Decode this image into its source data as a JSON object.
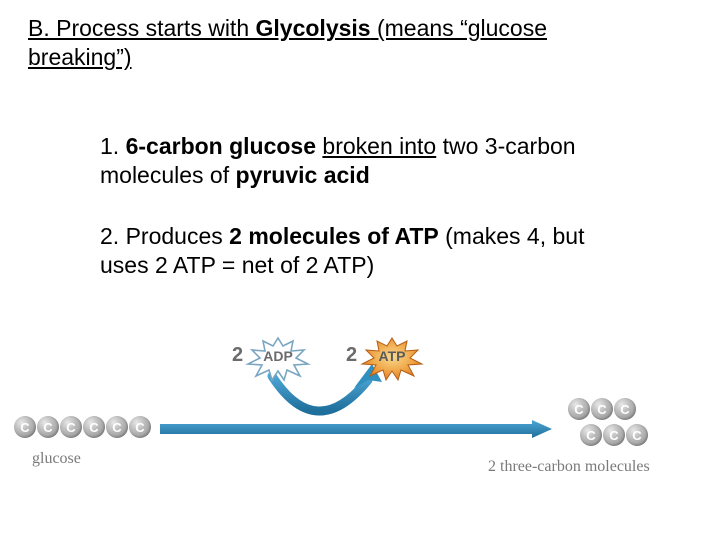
{
  "heading": {
    "prefix": "B. Process starts with ",
    "bold_under": "Glycolysis",
    "mid": " (means “glucose ",
    "line2_under": "breaking”)"
  },
  "item1": {
    "prefix": "1. ",
    "bold1": "6-carbon glucose",
    "mid": " ",
    "under": "broken into",
    "mid2": " two 3-carbon molecules of ",
    "bold2": "pyruvic acid"
  },
  "item2": {
    "prefix": "2. Produces ",
    "bold": "2 molecules of ATP",
    "rest": " (makes 4, but uses 2  ATP =  net of 2 ATP)"
  },
  "diagram": {
    "carbon_letter": "C",
    "glucose_count": 6,
    "product_count": 3,
    "label_glucose": "glucose",
    "label_products": "2 three-carbon molecules",
    "adp_count": "2",
    "adp_label": "ADP",
    "atp_count": "2",
    "atp_label": "ATP",
    "colors": {
      "big_arrow": "#2f8fbf",
      "arc_arrow": "#2f8fbf",
      "adp_outline": "#7aa6c2",
      "atp_fill_outer": "#e88b2d",
      "atp_fill_inner": "#f5c96a",
      "text_gray": "#6b6b6b",
      "label_gray": "#7a7a7a"
    }
  }
}
